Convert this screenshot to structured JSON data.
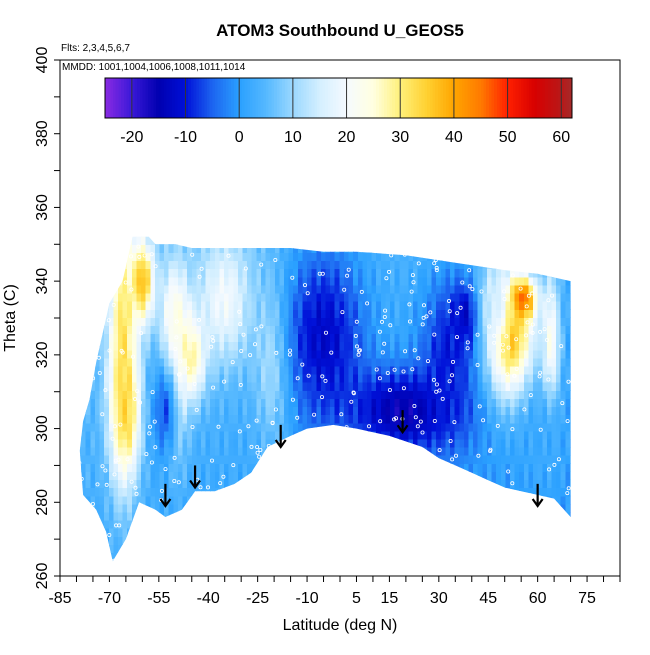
{
  "chart_data": {
    "type": "heatmap",
    "title": "ATOM3 Southbound U_GEOS5",
    "annotations": {
      "flights": "Flts: 2,3,4,5,6,7",
      "dates": "MMDD: 1001,1004,1006,1008,1011,1014"
    },
    "xlabel": "Latitude (deg N)",
    "ylabel": "Theta (C)",
    "xlim": [
      -85,
      85
    ],
    "ylim": [
      260,
      400
    ],
    "x_ticks": [
      -85,
      -70,
      -55,
      -40,
      -25,
      -10,
      5,
      15,
      30,
      45,
      60,
      75
    ],
    "y_ticks": [
      260,
      280,
      300,
      320,
      340,
      360,
      380,
      400
    ],
    "colorbar": {
      "range": [
        -25,
        62
      ],
      "ticks": [
        -20,
        -10,
        0,
        10,
        20,
        30,
        40,
        50,
        60
      ],
      "stops": [
        {
          "v": -25,
          "c": "#8a2be2"
        },
        {
          "v": -20,
          "c": "#3a18d8"
        },
        {
          "v": -15,
          "c": "#0000b0"
        },
        {
          "v": -10,
          "c": "#0010d8"
        },
        {
          "v": -5,
          "c": "#1c64f0"
        },
        {
          "v": 0,
          "c": "#2aa0ff"
        },
        {
          "v": 5,
          "c": "#55b8ff"
        },
        {
          "v": 10,
          "c": "#9ad8ff"
        },
        {
          "v": 15,
          "c": "#d4efff"
        },
        {
          "v": 20,
          "c": "#f5faff"
        },
        {
          "v": 25,
          "c": "#ffffe0"
        },
        {
          "v": 30,
          "c": "#fff07a"
        },
        {
          "v": 35,
          "c": "#ffd030"
        },
        {
          "v": 40,
          "c": "#ffa500"
        },
        {
          "v": 45,
          "c": "#ff7a00"
        },
        {
          "v": 50,
          "c": "#ff2000"
        },
        {
          "v": 55,
          "c": "#d80000"
        },
        {
          "v": 60,
          "c": "#b81818"
        },
        {
          "v": 62,
          "c": "#a52a2a"
        }
      ]
    },
    "domain": {
      "top_profile": [
        [
          -70,
          334
        ],
        [
          -66,
          340
        ],
        [
          -63,
          352
        ],
        [
          -58,
          352
        ],
        [
          -56,
          350
        ],
        [
          -50,
          350
        ],
        [
          -45,
          349
        ],
        [
          -30,
          349
        ],
        [
          -15,
          349
        ],
        [
          -5,
          348
        ],
        [
          5,
          348
        ],
        [
          20,
          347
        ],
        [
          35,
          345
        ],
        [
          50,
          343
        ],
        [
          60,
          342
        ],
        [
          70,
          340
        ]
      ],
      "bottom_profile": [
        [
          -78,
          282
        ],
        [
          -74,
          278
        ],
        [
          -71,
          272
        ],
        [
          -69,
          264
        ],
        [
          -65,
          270
        ],
        [
          -61,
          280
        ],
        [
          -56,
          278
        ],
        [
          -53,
          276
        ],
        [
          -48,
          278
        ],
        [
          -44,
          283
        ],
        [
          -38,
          283
        ],
        [
          -32,
          285
        ],
        [
          -27,
          288
        ],
        [
          -22,
          295
        ],
        [
          -15,
          298
        ],
        [
          -10,
          300
        ],
        [
          -2,
          301
        ],
        [
          5,
          300
        ],
        [
          15,
          298
        ],
        [
          25,
          295
        ],
        [
          30,
          292
        ],
        [
          35,
          290
        ],
        [
          40,
          288
        ],
        [
          45,
          286
        ],
        [
          50,
          284
        ],
        [
          55,
          283
        ],
        [
          60,
          282
        ],
        [
          65,
          281
        ],
        [
          70,
          276
        ]
      ],
      "left_profile": [
        [
          -70,
          334
        ],
        [
          -72,
          326
        ],
        [
          -74,
          318
        ],
        [
          -76,
          308
        ],
        [
          -78,
          302
        ],
        [
          -79,
          294
        ],
        [
          -78,
          282
        ]
      ]
    },
    "anomalies": [
      {
        "x": -66,
        "y": 325,
        "value": 32,
        "sx": 3,
        "sy": 25
      },
      {
        "x": -60,
        "y": 340,
        "value": 38,
        "sx": 2.5,
        "sy": 8
      },
      {
        "x": -65,
        "y": 305,
        "value": 34,
        "sx": 3,
        "sy": 12
      },
      {
        "x": -50,
        "y": 315,
        "value": 28,
        "sx": 2.5,
        "sy": 14
      },
      {
        "x": -50,
        "y": 330,
        "value": 24,
        "sx": 3,
        "sy": 10
      },
      {
        "x": -45,
        "y": 320,
        "value": 30,
        "sx": 3,
        "sy": 8
      },
      {
        "x": -35,
        "y": 335,
        "value": 20,
        "sx": 6,
        "sy": 12
      },
      {
        "x": -20,
        "y": 320,
        "value": 16,
        "sx": 4,
        "sy": 15
      },
      {
        "x": -53,
        "y": 305,
        "value": -6,
        "sx": 3,
        "sy": 10
      },
      {
        "x": -5,
        "y": 325,
        "value": -12,
        "sx": 9,
        "sy": 18
      },
      {
        "x": 20,
        "y": 305,
        "value": -16,
        "sx": 12,
        "sy": 8
      },
      {
        "x": 38,
        "y": 330,
        "value": -18,
        "sx": 3,
        "sy": 6
      },
      {
        "x": 33,
        "y": 320,
        "value": -10,
        "sx": 6,
        "sy": 15
      },
      {
        "x": 55,
        "y": 335,
        "value": 58,
        "sx": 3,
        "sy": 4
      },
      {
        "x": 52,
        "y": 325,
        "value": 38,
        "sx": 5,
        "sy": 12
      },
      {
        "x": 64,
        "y": 322,
        "value": 24,
        "sx": 2,
        "sy": 14
      },
      {
        "x": 47,
        "y": 335,
        "value": 15,
        "sx": 3,
        "sy": 8
      },
      {
        "x": 62,
        "y": 295,
        "value": 2,
        "sx": 6,
        "sy": 12
      }
    ],
    "arrows": [
      {
        "x": -53,
        "y_top": 285,
        "y_bottom": 279
      },
      {
        "x": -44,
        "y_top": 290,
        "y_bottom": 284
      },
      {
        "x": -18,
        "y_top": 301,
        "y_bottom": 295
      },
      {
        "x": 19,
        "y_top": 305,
        "y_bottom": 299
      },
      {
        "x": 60,
        "y_top": 285,
        "y_bottom": 279
      }
    ]
  }
}
